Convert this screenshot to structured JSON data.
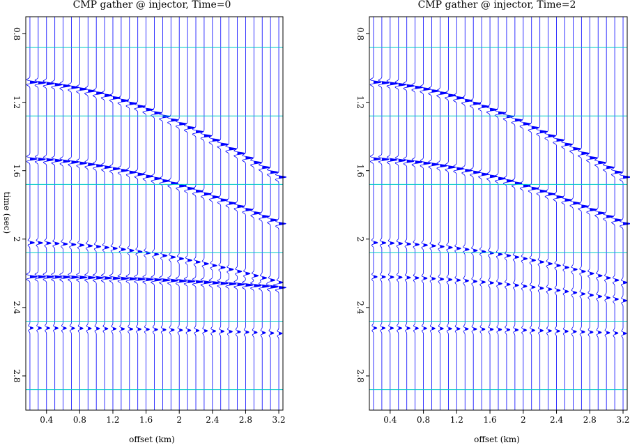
{
  "chart_data": [
    {
      "type": "seismic-wiggle",
      "title": "CMP gather @ injector, Time=0",
      "xlabel": "offset (km)",
      "ylabel": "time (sec)",
      "xlim": [
        0.15,
        3.25
      ],
      "ylim": [
        0.7,
        3.0
      ],
      "xticks": [
        "0.4",
        "0.8",
        "1.2",
        "1.6",
        "2",
        "2.4",
        "2.8",
        "3.2"
      ],
      "yticks": [
        "0.8",
        "1.2",
        "1.6",
        "2",
        "2.4",
        "2.8"
      ],
      "trace_offsets_start": 0.2,
      "trace_offsets_step": 0.1,
      "trace_count": 31,
      "gridlines_time": [
        0.88,
        1.28,
        1.68,
        2.08,
        2.48,
        2.88
      ],
      "events": [
        {
          "t0": 1.08,
          "velocity": 2.6,
          "amplitude": 1.0
        },
        {
          "t0": 1.53,
          "velocity": 2.8,
          "amplitude": 0.95
        },
        {
          "t0": 2.02,
          "velocity": 3.2,
          "amplitude": 0.6
        },
        {
          "t0": 2.22,
          "velocity": 6.0,
          "amplitude": 1.0
        },
        {
          "t0": 2.52,
          "velocity": 8.0,
          "amplitude": 0.45
        }
      ],
      "trace_color": "#0000ff",
      "grid_color": "#00c8c8"
    },
    {
      "type": "seismic-wiggle",
      "title": "CMP gather @ injector, Time=2",
      "xlabel": "offset (km)",
      "ylabel": "",
      "xlim": [
        0.15,
        3.25
      ],
      "ylim": [
        0.7,
        3.0
      ],
      "xticks": [
        "0.4",
        "0.8",
        "1.2",
        "1.6",
        "2",
        "2.4",
        "2.8",
        "3.2"
      ],
      "yticks": [
        "0.8",
        "1.2",
        "1.6",
        "2",
        "2.4",
        "2.8"
      ],
      "trace_offsets_start": 0.2,
      "trace_offsets_step": 0.1,
      "trace_count": 31,
      "gridlines_time": [
        0.88,
        1.28,
        1.68,
        2.08,
        2.48,
        2.88
      ],
      "events": [
        {
          "t0": 1.08,
          "velocity": 2.6,
          "amplitude": 1.0
        },
        {
          "t0": 1.53,
          "velocity": 2.8,
          "amplitude": 0.95
        },
        {
          "t0": 2.02,
          "velocity": 3.2,
          "amplitude": 0.55
        },
        {
          "t0": 2.22,
          "velocity": 4.0,
          "amplitude": 0.5
        },
        {
          "t0": 2.52,
          "velocity": 8.0,
          "amplitude": 0.45
        }
      ],
      "trace_color": "#0000ff",
      "grid_color": "#00c8c8"
    }
  ]
}
